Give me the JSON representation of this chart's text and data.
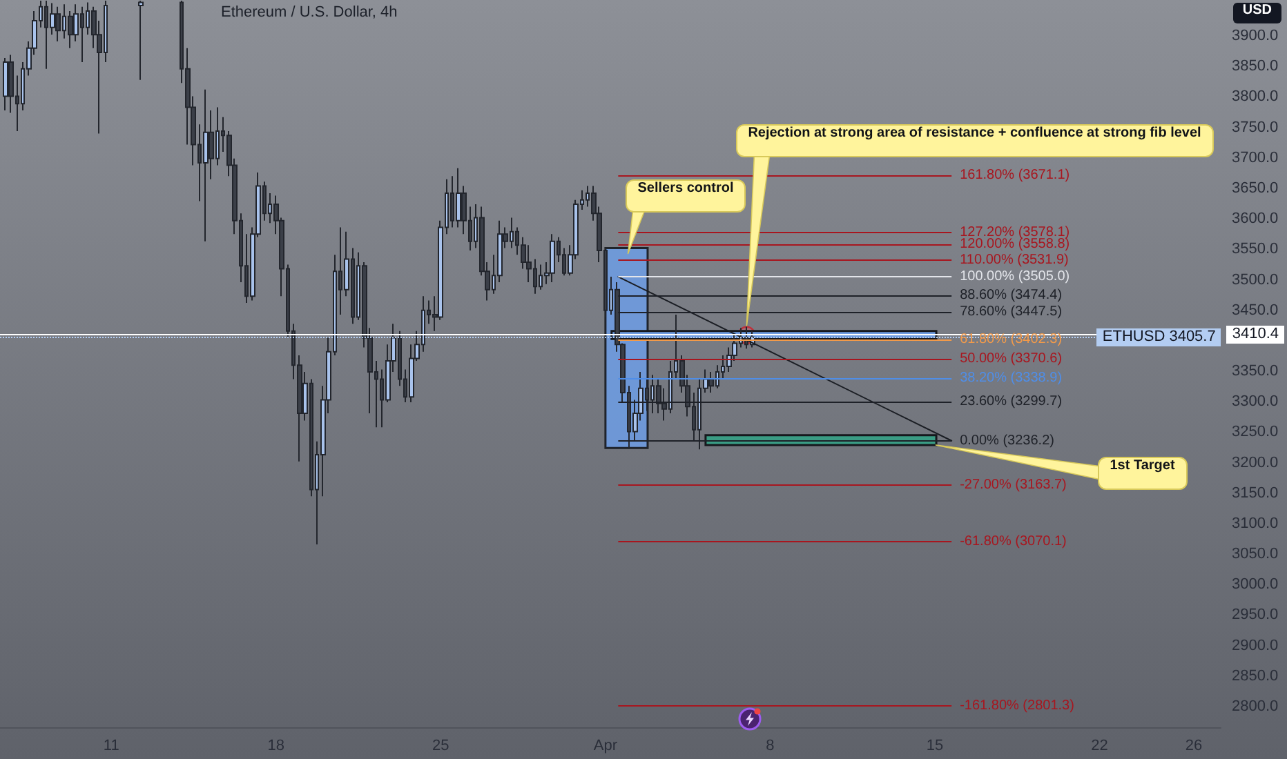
{
  "chart_data": {
    "type": "candlestick",
    "title": "Ethereum / U.S. Dollar, 4h",
    "ylabel": "USD",
    "x": [
      "--03-06T12:00",
      "--03-06T18:00",
      "--03-07T00:00",
      "--03-07T06:00",
      "--03-07T12:00",
      "--03-07T18:00",
      "--03-08T00:00",
      "--03-08T06:00",
      "--03-08T12:00",
      "--03-08T18:00",
      "--03-09T00:00",
      "--03-09T06:00",
      "--03-09T12:00",
      "--03-09T18:00",
      "--03-10T00:00",
      "--03-10T06:00",
      "--03-10T12:00",
      "--03-10T18:00",
      "--03-12T06:00",
      "--03-14T00:00",
      "--03-14T06:00",
      "--03-14T12:00",
      "--03-14T18:00",
      "--03-15T00:00",
      "--03-15T06:00",
      "--03-15T12:00",
      "--03-15T18:00",
      "--03-16T00:00",
      "--03-16T06:00",
      "--03-16T12:00",
      "--03-16T18:00",
      "--03-17T00:00",
      "--03-17T06:00",
      "--03-17T12:00",
      "--03-17T18:00",
      "--03-18T00:00",
      "--03-18T06:00",
      "--03-18T12:00",
      "--03-18T18:00",
      "--03-19T00:00",
      "--03-19T06:00",
      "--03-19T12:00",
      "--03-19T18:00",
      "--03-20T00:00",
      "--03-20T06:00",
      "--03-20T12:00",
      "--03-20T18:00",
      "--03-21T00:00",
      "--03-21T06:00",
      "--03-21T12:00",
      "--03-21T18:00",
      "--03-22T00:00",
      "--03-22T06:00",
      "--03-22T12:00",
      "--03-22T18:00",
      "--03-23T00:00",
      "--03-23T06:00",
      "--03-23T12:00",
      "--03-23T18:00",
      "--03-24T00:00",
      "--03-24T06:00",
      "--03-24T12:00",
      "--03-24T18:00",
      "--03-25T00:00",
      "--03-25T06:00",
      "--03-25T12:00",
      "--03-25T18:00",
      "--03-26T00:00",
      "--03-26T06:00",
      "--03-26T12:00",
      "--03-26T18:00",
      "--03-27T00:00",
      "--03-27T06:00",
      "--03-27T12:00",
      "--03-27T18:00",
      "--03-28T00:00",
      "--03-28T06:00",
      "--03-28T12:00",
      "--03-28T18:00",
      "--03-29T00:00",
      "--03-29T06:00",
      "--03-29T12:00",
      "--03-29T18:00",
      "--03-30T00:00",
      "--03-30T06:00",
      "--03-30T12:00",
      "--03-30T18:00",
      "--03-31T00:00",
      "--03-31T06:00",
      "--03-31T12:00",
      "--03-31T18:00",
      "--04-01T00:00",
      "--04-01T06:00",
      "--04-01T12:00",
      "--04-01T18:00",
      "--04-02T00:00",
      "--04-02T06:00",
      "--04-02T12:00",
      "--04-02T18:00",
      "--04-03T00:00",
      "--04-03T06:00",
      "--04-03T12:00",
      "--04-03T18:00",
      "--04-04T00:00",
      "--04-04T06:00",
      "--04-04T12:00",
      "--04-04T18:00",
      "--04-05T00:00",
      "--04-05T06:00",
      "--04-05T12:00",
      "--04-05T18:00",
      "--04-06T00:00",
      "--04-06T06:00",
      "--04-06T12:00",
      "--04-06T18:00",
      "--04-07T00:00",
      "--04-07T06:00"
    ],
    "ohlc": [
      [
        3801,
        3864,
        3778,
        3857
      ],
      [
        3857,
        3869,
        3774,
        3801
      ],
      [
        3801,
        3835,
        3744,
        3789
      ],
      [
        3789,
        3857,
        3778,
        3846
      ],
      [
        3846,
        3891,
        3835,
        3880
      ],
      [
        3880,
        3941,
        3869,
        3925
      ],
      [
        3925,
        3958,
        3914,
        3948
      ],
      [
        3948,
        3958,
        3846,
        3914
      ],
      [
        3914,
        3954,
        3902,
        3936
      ],
      [
        3936,
        3948,
        3891,
        3909
      ],
      [
        3909,
        3952,
        3896,
        3932
      ],
      [
        3932,
        3941,
        3880,
        3902
      ],
      [
        3902,
        3952,
        3891,
        3936
      ],
      [
        3936,
        3948,
        3857,
        3914
      ],
      [
        3914,
        3955,
        3902,
        3941
      ],
      [
        3941,
        3948,
        3880,
        3902
      ],
      [
        3902,
        3925,
        3740,
        3873
      ],
      [
        3873,
        3958,
        3857,
        3950
      ],
      [
        3950,
        3958,
        3828,
        3955
      ],
      [
        3955,
        3958,
        3823,
        3846
      ],
      [
        3846,
        3880,
        3722,
        3783
      ],
      [
        3783,
        3801,
        3688,
        3722
      ],
      [
        3722,
        3755,
        3629,
        3692
      ],
      [
        3692,
        3812,
        3563,
        3742
      ],
      [
        3742,
        3778,
        3665,
        3699
      ],
      [
        3699,
        3783,
        3688,
        3744
      ],
      [
        3744,
        3767,
        3710,
        3737
      ],
      [
        3737,
        3744,
        3670,
        3688
      ],
      [
        3688,
        3699,
        3575,
        3597
      ],
      [
        3597,
        3609,
        3496,
        3523
      ],
      [
        3523,
        3575,
        3462,
        3473
      ],
      [
        3473,
        3586,
        3466,
        3575
      ],
      [
        3575,
        3676,
        3570,
        3654
      ],
      [
        3654,
        3661,
        3597,
        3609
      ],
      [
        3609,
        3642,
        3593,
        3624
      ],
      [
        3624,
        3638,
        3575,
        3597
      ],
      [
        3597,
        3602,
        3473,
        3518
      ],
      [
        3518,
        3525,
        3405,
        3416
      ],
      [
        3416,
        3428,
        3337,
        3360
      ],
      [
        3360,
        3376,
        3202,
        3281
      ],
      [
        3281,
        3349,
        3269,
        3330
      ],
      [
        3330,
        3337,
        3145,
        3156
      ],
      [
        3156,
        3235,
        3066,
        3213
      ],
      [
        3213,
        3326,
        3145,
        3303
      ],
      [
        3303,
        3405,
        3281,
        3382
      ],
      [
        3382,
        3541,
        3376,
        3514
      ],
      [
        3514,
        3586,
        3443,
        3484
      ],
      [
        3484,
        3579,
        3473,
        3534
      ],
      [
        3534,
        3552,
        3428,
        3439
      ],
      [
        3439,
        3545,
        3434,
        3523
      ],
      [
        3523,
        3529,
        3389,
        3405
      ],
      [
        3405,
        3421,
        3281,
        3349
      ],
      [
        3349,
        3367,
        3258,
        3337
      ],
      [
        3337,
        3353,
        3258,
        3303
      ],
      [
        3303,
        3394,
        3299,
        3367
      ],
      [
        3367,
        3428,
        3349,
        3405
      ],
      [
        3405,
        3416,
        3326,
        3337
      ],
      [
        3337,
        3353,
        3299,
        3308
      ],
      [
        3308,
        3394,
        3299,
        3371
      ],
      [
        3371,
        3416,
        3367,
        3394
      ],
      [
        3394,
        3473,
        3382,
        3450
      ],
      [
        3450,
        3466,
        3428,
        3443
      ],
      [
        3443,
        3473,
        3416,
        3439
      ],
      [
        3439,
        3597,
        3434,
        3586
      ],
      [
        3586,
        3665,
        3575,
        3642
      ],
      [
        3642,
        3670,
        3586,
        3597
      ],
      [
        3597,
        3683,
        3586,
        3642
      ],
      [
        3642,
        3654,
        3575,
        3597
      ],
      [
        3597,
        3620,
        3548,
        3563
      ],
      [
        3563,
        3624,
        3552,
        3602
      ],
      [
        3602,
        3620,
        3507,
        3514
      ],
      [
        3514,
        3529,
        3466,
        3484
      ],
      [
        3484,
        3541,
        3477,
        3507
      ],
      [
        3507,
        3597,
        3496,
        3575
      ],
      [
        3575,
        3586,
        3552,
        3563
      ],
      [
        3563,
        3602,
        3552,
        3579
      ],
      [
        3579,
        3586,
        3541,
        3557
      ],
      [
        3557,
        3570,
        3518,
        3529
      ],
      [
        3529,
        3557,
        3496,
        3518
      ],
      [
        3518,
        3534,
        3477,
        3489
      ],
      [
        3489,
        3525,
        3484,
        3507
      ],
      [
        3507,
        3529,
        3493,
        3511
      ],
      [
        3511,
        3575,
        3496,
        3563
      ],
      [
        3563,
        3570,
        3529,
        3541
      ],
      [
        3541,
        3552,
        3507,
        3511
      ],
      [
        3511,
        3557,
        3507,
        3541
      ],
      [
        3541,
        3631,
        3534,
        3624
      ],
      [
        3624,
        3647,
        3615,
        3631
      ],
      [
        3631,
        3654,
        3620,
        3642
      ],
      [
        3642,
        3654,
        3597,
        3609
      ],
      [
        3609,
        3620,
        3529,
        3548
      ],
      [
        3548,
        3552,
        3439,
        3450
      ],
      [
        3450,
        3505,
        3443,
        3484
      ],
      [
        3484,
        3496,
        3382,
        3394
      ],
      [
        3394,
        3396,
        3299,
        3315
      ],
      [
        3315,
        3326,
        3224,
        3251
      ],
      [
        3251,
        3303,
        3235,
        3281
      ],
      [
        3281,
        3349,
        3269,
        3322
      ],
      [
        3322,
        3337,
        3285,
        3303
      ],
      [
        3303,
        3344,
        3281,
        3326
      ],
      [
        3326,
        3337,
        3281,
        3297
      ],
      [
        3297,
        3322,
        3269,
        3288
      ],
      [
        3288,
        3367,
        3281,
        3349
      ],
      [
        3349,
        3443,
        3337,
        3367
      ],
      [
        3367,
        3376,
        3315,
        3326
      ],
      [
        3326,
        3344,
        3276,
        3292
      ],
      [
        3292,
        3315,
        3235,
        3254
      ],
      [
        3254,
        3337,
        3222,
        3322
      ],
      [
        3322,
        3353,
        3315,
        3337
      ],
      [
        3337,
        3349,
        3315,
        3326
      ],
      [
        3326,
        3360,
        3322,
        3349
      ],
      [
        3349,
        3376,
        3337,
        3358
      ],
      [
        3358,
        3389,
        3349,
        3376
      ],
      [
        3376,
        3412,
        3367,
        3396
      ],
      [
        3396,
        3421,
        3389,
        3405
      ],
      [
        3405,
        3423,
        3387,
        3394
      ],
      [
        3394,
        3416,
        3389,
        3405.7
      ]
    ],
    "xlim": [
      "--03-06T06:30",
      "--04-27T03:30"
    ],
    "xticks": [
      {
        "value": "--03-11",
        "label": "11"
      },
      {
        "value": "--03-18",
        "label": "18"
      },
      {
        "value": "--03-25",
        "label": "25"
      },
      {
        "value": "--04-01",
        "label": "Apr"
      },
      {
        "value": "--04-08",
        "label": "8"
      },
      {
        "value": "--04-15",
        "label": "15"
      },
      {
        "value": "--04-22",
        "label": "22"
      },
      {
        "value": "--04-26",
        "label": "26"
      }
    ],
    "ylim": [
      2766,
      3959
    ],
    "yticks": [
      {
        "value": 2800,
        "label": "2800.0"
      },
      {
        "value": 2850,
        "label": "2850.0"
      },
      {
        "value": 2900,
        "label": "2900.0"
      },
      {
        "value": 2950,
        "label": "2950.0"
      },
      {
        "value": 3000,
        "label": "3000.0"
      },
      {
        "value": 3050,
        "label": "3050.0"
      },
      {
        "value": 3100,
        "label": "3100.0"
      },
      {
        "value": 3150,
        "label": "3150.0"
      },
      {
        "value": 3200,
        "label": "3200.0"
      },
      {
        "value": 3250,
        "label": "3250.0"
      },
      {
        "value": 3300,
        "label": "3300.0"
      },
      {
        "value": 3350,
        "label": "3350.0"
      },
      {
        "value": 3450,
        "label": "3450.0"
      },
      {
        "value": 3500,
        "label": "3500.0"
      },
      {
        "value": 3550,
        "label": "3550.0"
      },
      {
        "value": 3600,
        "label": "3600.0"
      },
      {
        "value": 3650,
        "label": "3650.0"
      },
      {
        "value": 3700,
        "label": "3700.0"
      },
      {
        "value": 3750,
        "label": "3750.0"
      },
      {
        "value": 3800,
        "label": "3800.0"
      },
      {
        "value": 3850,
        "label": "3850.0"
      },
      {
        "value": 3900,
        "label": "3900.0"
      }
    ],
    "series": [
      {
        "type": "line",
        "x": [
          "--04-01T13:00",
          "--04-15T17:00"
        ],
        "values": [
          3505,
          3236
        ],
        "color": "#1b1e24"
      }
    ],
    "ref_lines": [
      {
        "axis": "y",
        "value": 3410.4,
        "label": "3410.4",
        "color": "#ffffff",
        "line_style": "solid"
      },
      {
        "axis": "y",
        "value": 3405.7,
        "label": "ETHUSD 3405.7",
        "color": "#b3cdf2",
        "line_style": "dotted"
      },
      {
        "axis": "y",
        "value": 3671.1,
        "label": "161.80% (3671.1)",
        "color": "#a8161f"
      },
      {
        "axis": "y",
        "value": 3578.1,
        "label": "127.20% (3578.1)",
        "color": "#a8161f"
      },
      {
        "axis": "y",
        "value": 3558.8,
        "label": "120.00% (3558.8)",
        "color": "#a8161f"
      },
      {
        "axis": "y",
        "value": 3531.9,
        "label": "110.00% (3531.9)",
        "color": "#a8161f"
      },
      {
        "axis": "y",
        "value": 3505.0,
        "label": "100.00% (3505.0)",
        "color": "#e3e5ea"
      },
      {
        "axis": "y",
        "value": 3474.4,
        "label": "88.60% (3474.4)",
        "color": "#1e2128"
      },
      {
        "axis": "y",
        "value": 3447.5,
        "label": "78.60% (3447.5)",
        "color": "#1e2128"
      },
      {
        "axis": "y",
        "value": 3402.3,
        "label": "61.80% (3402.3)",
        "color": "#f29a4a"
      },
      {
        "axis": "y",
        "value": 3370.6,
        "label": "50.00% (3370.6)",
        "color": "#a8161f"
      },
      {
        "axis": "y",
        "value": 3338.9,
        "label": "38.20% (3338.9)",
        "color": "#4f8ee8"
      },
      {
        "axis": "y",
        "value": 3299.7,
        "label": "23.60% (3299.7)",
        "color": "#1e2128"
      },
      {
        "axis": "y",
        "value": 3236.2,
        "label": "0.00% (3236.2)",
        "color": "#1e2128"
      },
      {
        "axis": "y",
        "value": 3163.7,
        "label": "-27.00% (3163.7)",
        "color": "#a8161f"
      },
      {
        "axis": "y",
        "value": 3070.1,
        "label": "-61.80% (3070.1)",
        "color": "#a8161f"
      },
      {
        "axis": "y",
        "value": 2801.3,
        "label": "-161.80% (2801.3)",
        "color": "#a8161f"
      }
    ],
    "bands": [
      {
        "axis": "x",
        "from": "--04-01T00:00",
        "to": "--04-02T19:00",
        "color": "#6e9be0"
      },
      {
        "axis": "y",
        "from": 3403,
        "to": 3416,
        "color": "#6e9be0"
      },
      {
        "axis": "y",
        "from": 3229,
        "to": 3245,
        "color": "#3a9c84"
      }
    ],
    "annotations": [
      {
        "text": "Sellers control",
        "x": "--04-01T23:00",
        "y": 3543
      },
      {
        "text": "Rejection at strong area of resistance + confluence at strong fib level",
        "x": "--04-07T00:00",
        "y": 3425
      },
      {
        "text": "1st Target",
        "x": "--04-15T01:00",
        "y": 3229
      }
    ]
  }
}
